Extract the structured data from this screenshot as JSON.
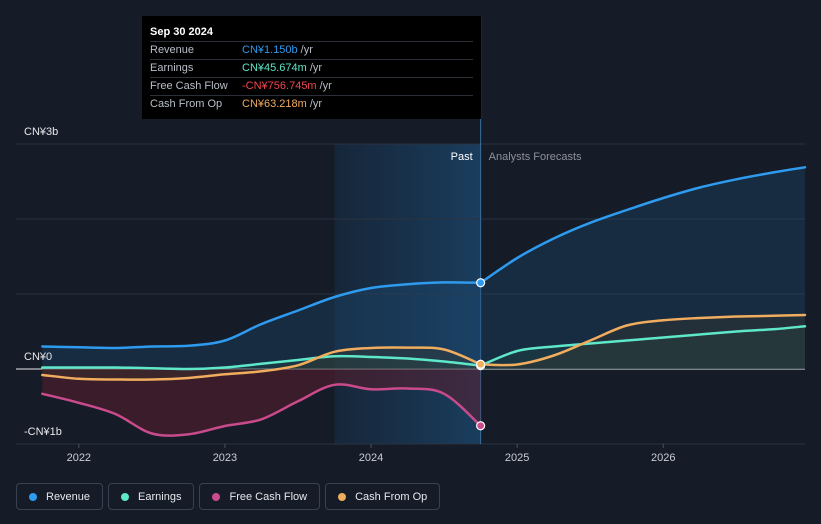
{
  "tooltip": {
    "date": "Sep 30 2024",
    "rows": [
      {
        "label": "Revenue",
        "value": "CN¥1.150b",
        "unit": "/yr",
        "color": "#2e9bef"
      },
      {
        "label": "Earnings",
        "value": "CN¥45.674m",
        "unit": "/yr",
        "color": "#5ee7c9"
      },
      {
        "label": "Free Cash Flow",
        "value": "-CN¥756.745m",
        "unit": "/yr",
        "color": "#f2454f"
      },
      {
        "label": "Cash From Op",
        "value": "CN¥63.218m",
        "unit": "/yr",
        "color": "#f0ad5e"
      }
    ]
  },
  "legend": [
    {
      "label": "Revenue",
      "color": "#2e9bef"
    },
    {
      "label": "Earnings",
      "color": "#5ee7c9"
    },
    {
      "label": "Free Cash Flow",
      "color": "#c94b8c"
    },
    {
      "label": "Cash From Op",
      "color": "#f0ad5e"
    }
  ],
  "chart_data": {
    "type": "line",
    "y_tick_labels": [
      {
        "value": 3,
        "label": "CN¥3b"
      },
      {
        "value": 0,
        "label": "CN¥0"
      },
      {
        "value": -1,
        "label": "-CN¥1b"
      }
    ],
    "x_tick_labels": [
      {
        "value": 2022,
        "label": "2022"
      },
      {
        "value": 2023,
        "label": "2023"
      },
      {
        "value": 2024,
        "label": "2024"
      },
      {
        "value": 2025,
        "label": "2025"
      },
      {
        "value": 2026,
        "label": "2026"
      }
    ],
    "xlim": [
      2021.57,
      2026.97
    ],
    "ylim": [
      -1,
      3
    ],
    "divider_x": 2024.75,
    "highlight_start_x": 2023.75,
    "past_label": "Past",
    "forecast_label": "Analysts Forecasts",
    "grid": true,
    "legend_position": "bottom",
    "series": [
      {
        "name": "Revenue",
        "color": "#2e9bef",
        "past": [
          [
            2021.75,
            0.3
          ],
          [
            2022.0,
            0.29
          ],
          [
            2022.25,
            0.28
          ],
          [
            2022.5,
            0.3
          ],
          [
            2022.75,
            0.31
          ],
          [
            2023.0,
            0.38
          ],
          [
            2023.25,
            0.6
          ],
          [
            2023.5,
            0.78
          ],
          [
            2023.75,
            0.96
          ],
          [
            2024.0,
            1.08
          ],
          [
            2024.25,
            1.13
          ],
          [
            2024.5,
            1.155
          ],
          [
            2024.75,
            1.15
          ]
        ],
        "forecast": [
          [
            2024.75,
            1.15
          ],
          [
            2025.0,
            1.48
          ],
          [
            2025.25,
            1.74
          ],
          [
            2025.5,
            1.95
          ],
          [
            2025.75,
            2.12
          ],
          [
            2026.0,
            2.28
          ],
          [
            2026.25,
            2.42
          ],
          [
            2026.5,
            2.53
          ],
          [
            2026.75,
            2.62
          ],
          [
            2026.97,
            2.69
          ]
        ]
      },
      {
        "name": "Earnings",
        "color": "#5ee7c9",
        "past": [
          [
            2021.75,
            0.02
          ],
          [
            2022.0,
            0.02
          ],
          [
            2022.25,
            0.02
          ],
          [
            2022.5,
            0.01
          ],
          [
            2022.75,
            0.0
          ],
          [
            2023.0,
            0.02
          ],
          [
            2023.25,
            0.07
          ],
          [
            2023.5,
            0.12
          ],
          [
            2023.75,
            0.17
          ],
          [
            2024.0,
            0.16
          ],
          [
            2024.25,
            0.14
          ],
          [
            2024.5,
            0.1
          ],
          [
            2024.75,
            0.045
          ]
        ],
        "forecast": [
          [
            2024.75,
            0.045
          ],
          [
            2025.0,
            0.24
          ],
          [
            2025.25,
            0.3
          ],
          [
            2025.5,
            0.34
          ],
          [
            2025.75,
            0.38
          ],
          [
            2026.0,
            0.42
          ],
          [
            2026.25,
            0.46
          ],
          [
            2026.5,
            0.5
          ],
          [
            2026.75,
            0.53
          ],
          [
            2026.97,
            0.57
          ]
        ]
      },
      {
        "name": "Free Cash Flow",
        "color": "#c94b8c",
        "past": [
          [
            2021.75,
            -0.33
          ],
          [
            2022.0,
            -0.45
          ],
          [
            2022.25,
            -0.6
          ],
          [
            2022.5,
            -0.86
          ],
          [
            2022.75,
            -0.87
          ],
          [
            2023.0,
            -0.76
          ],
          [
            2023.25,
            -0.67
          ],
          [
            2023.5,
            -0.43
          ],
          [
            2023.75,
            -0.21
          ],
          [
            2024.0,
            -0.27
          ],
          [
            2024.25,
            -0.26
          ],
          [
            2024.5,
            -0.33
          ],
          [
            2024.75,
            -0.757
          ]
        ],
        "forecast": []
      },
      {
        "name": "Cash From Op",
        "color": "#f0ad5e",
        "past": [
          [
            2021.75,
            -0.08
          ],
          [
            2022.0,
            -0.13
          ],
          [
            2022.25,
            -0.14
          ],
          [
            2022.5,
            -0.14
          ],
          [
            2022.75,
            -0.12
          ],
          [
            2023.0,
            -0.07
          ],
          [
            2023.25,
            -0.03
          ],
          [
            2023.5,
            0.05
          ],
          [
            2023.75,
            0.23
          ],
          [
            2024.0,
            0.28
          ],
          [
            2024.25,
            0.285
          ],
          [
            2024.5,
            0.26
          ],
          [
            2024.75,
            0.063
          ]
        ],
        "forecast": [
          [
            2024.75,
            0.063
          ],
          [
            2025.0,
            0.06
          ],
          [
            2025.25,
            0.18
          ],
          [
            2025.5,
            0.38
          ],
          [
            2025.75,
            0.58
          ],
          [
            2026.0,
            0.65
          ],
          [
            2026.25,
            0.68
          ],
          [
            2026.5,
            0.7
          ],
          [
            2026.75,
            0.71
          ],
          [
            2026.97,
            0.72
          ]
        ]
      }
    ]
  }
}
